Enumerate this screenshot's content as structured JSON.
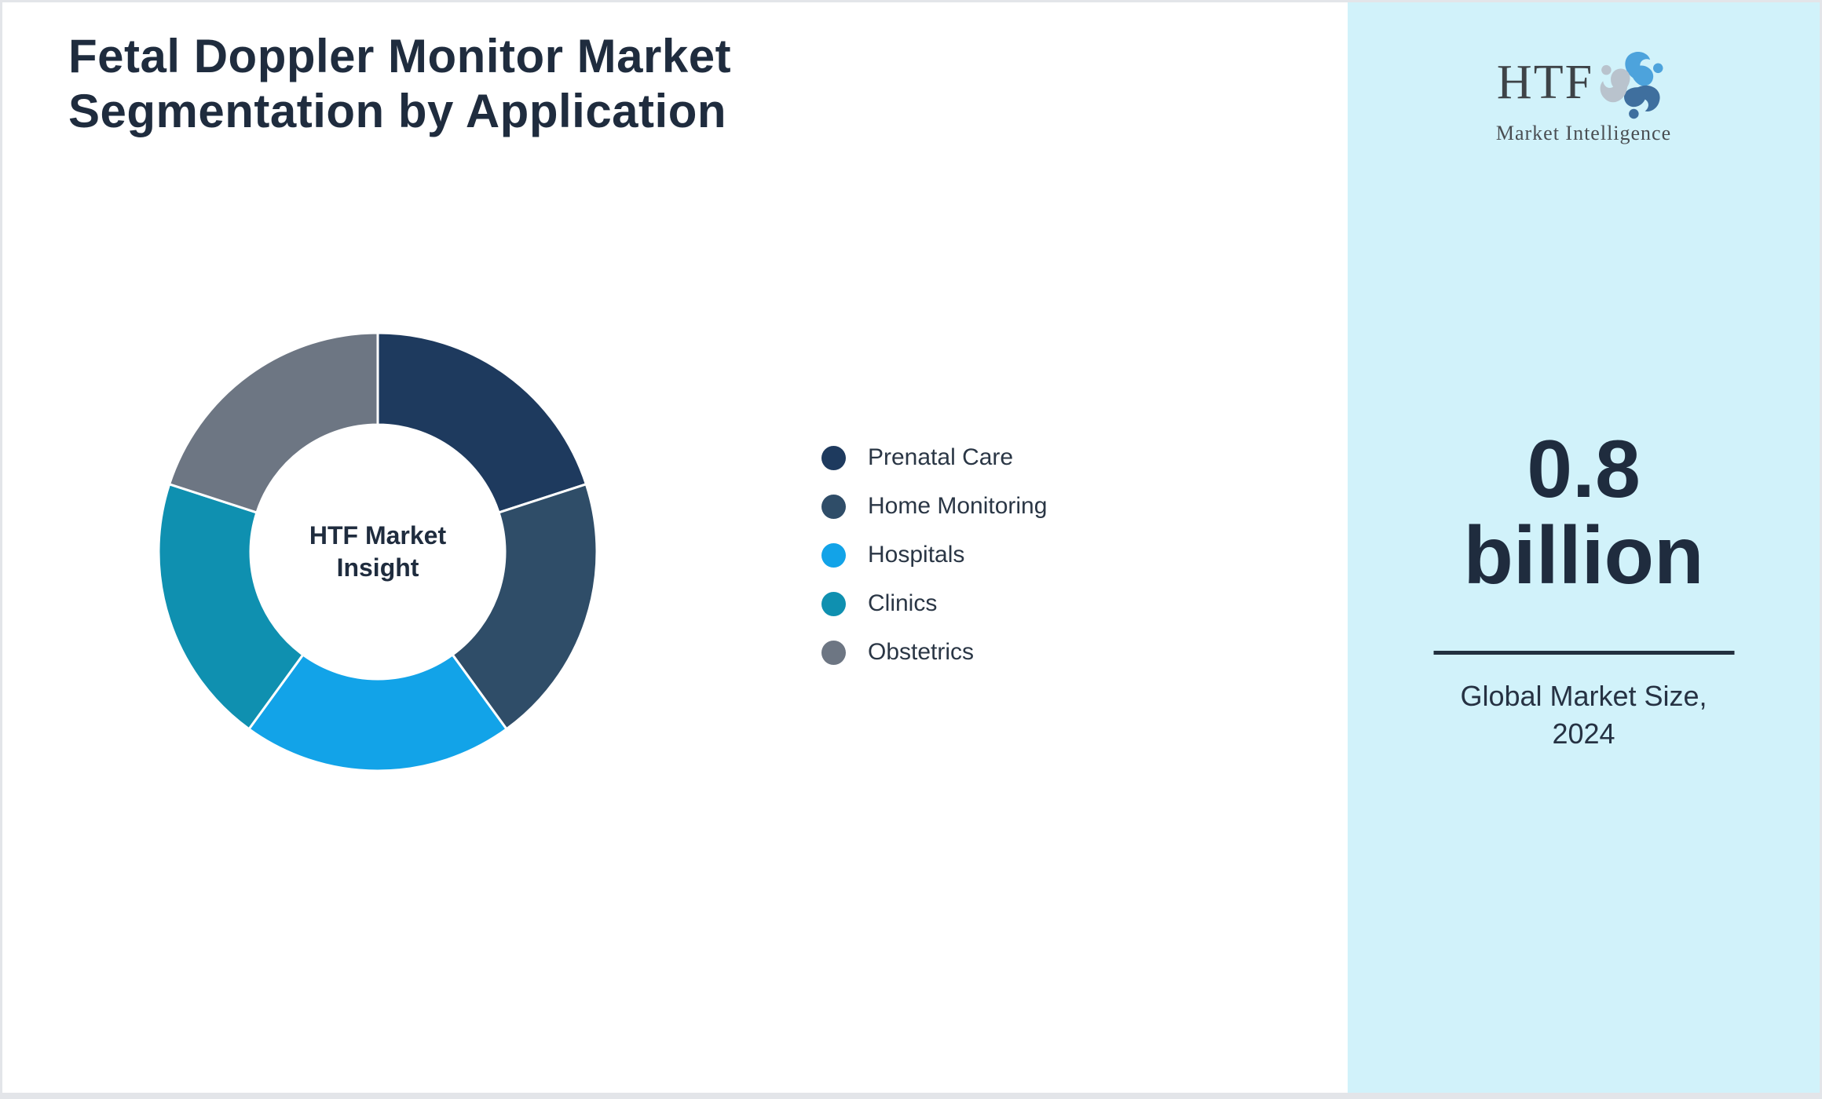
{
  "title": {
    "line1": "Fetal Doppler Monitor Market",
    "line2": "Segmentation by Application"
  },
  "chart_data": {
    "type": "pie",
    "subtype": "donut",
    "title": "Fetal Doppler Monitor Market Segmentation by Application",
    "categories": [
      "Prenatal Care",
      "Home Monitoring",
      "Hospitals",
      "Clinics",
      "Obstetrics"
    ],
    "values": [
      20,
      20,
      20,
      20,
      20
    ],
    "colors": [
      "#1e3a5e",
      "#2f4d68",
      "#12a3e8",
      "#0f90b0",
      "#6d7683"
    ],
    "start_angle_deg": 0,
    "direction": "clockwise",
    "inner_radius_ratio": 0.58,
    "center_label": "HTF Market Insight",
    "legend_position": "right-of-chart"
  },
  "donut_center": {
    "line1": "HTF Market",
    "line2": "Insight"
  },
  "sidebar": {
    "logo_text": "HTF",
    "logo_subtext": "Market Intelligence",
    "market_size_value": "0.8",
    "market_size_unit": "billion",
    "caption_line1": "Global Market Size,",
    "caption_line2": "2024"
  },
  "colors": {
    "canvas_bg": "#ffffff",
    "border": "#e3e5e9",
    "sidebar_bg": "#d1f2fa",
    "text_dark": "#1f2c3e",
    "logo_blue": "#4da3dc",
    "logo_steel": "#3f6f9e",
    "logo_gray": "#b9c3cd"
  }
}
